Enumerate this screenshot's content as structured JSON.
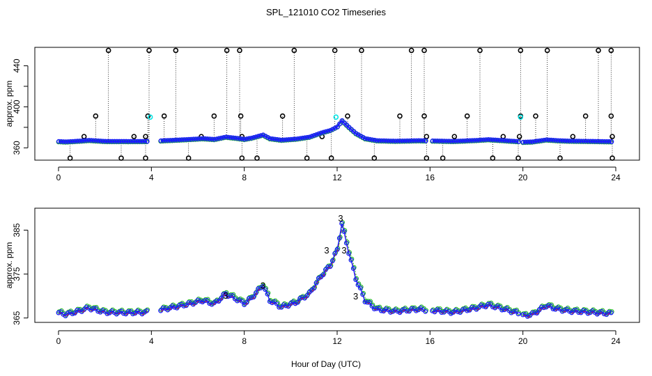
{
  "title": "SPL_121010  CO2 Timeseries",
  "xlabel": "Hour of Day (UTC)",
  "colors": {
    "axis": "#000000",
    "black": "#000000",
    "cyan": "#00e5e5",
    "blue": "#1a1aff",
    "green": "#22bb22",
    "red": "#dd2222"
  },
  "chart_data": [
    {
      "type": "scatter",
      "name": "full-range",
      "ylabel": "approx. ppm",
      "xlim": [
        0,
        24
      ],
      "ylim": [
        348,
        458
      ],
      "xticks": [
        0,
        4,
        8,
        12,
        16,
        20,
        24
      ],
      "yticks": [
        360,
        400,
        440
      ],
      "yticks_unlabeled": [
        380,
        420
      ],
      "outliers_high": [
        2.15,
        3.9,
        5.05,
        7.25,
        7.8,
        10.15,
        11.9,
        13.05,
        15.2,
        15.75,
        18.15,
        19.9,
        21.05,
        23.25,
        23.8
      ],
      "outliers_low": [
        0.5,
        2.7,
        3.75,
        5.6,
        7.9,
        8.55,
        10.7,
        11.75,
        13.6,
        15.85,
        16.55,
        18.7,
        19.8,
        21.6,
        23.85
      ],
      "outliers_mid": [
        1.6,
        3.85,
        4.55,
        6.7,
        7.85,
        9.65,
        12.45,
        14.7,
        15.75,
        17.6,
        19.9,
        20.55,
        22.7,
        23.8
      ],
      "outliers_minor": [
        1.1,
        3.25,
        3.75,
        6.15,
        7.9,
        11.35,
        15.85,
        17.05,
        19.15,
        19.85,
        22.15,
        23.85
      ],
      "cyan_points": [
        [
          3.95,
          390
        ],
        [
          11.95,
          390
        ],
        [
          19.9,
          390
        ]
      ],
      "series_note": "three nearly identical series (black/cyan/green/red circles, blue line) centred near 366 ppm with a peak of ~386 ppm at 12 h"
    },
    {
      "type": "line",
      "name": "zoom",
      "ylabel": "approx. ppm",
      "xlim": [
        0,
        24
      ],
      "ylim": [
        364,
        390
      ],
      "xticks": [
        0,
        4,
        8,
        12,
        16,
        20,
        24
      ],
      "yticks": [
        365,
        375,
        385
      ],
      "gaps_hours": [
        [
          3.85,
          4.35
        ],
        [
          15.85,
          16.0
        ],
        [
          19.85,
          20.0
        ]
      ],
      "labeled_points": [
        [
          11.55,
          380.5,
          "3"
        ],
        [
          12.15,
          387.8,
          "3"
        ],
        [
          12.3,
          380.5,
          "3"
        ],
        [
          12.8,
          370,
          "3"
        ],
        [
          7.2,
          370.2,
          "3"
        ],
        [
          8.8,
          372.5,
          "3"
        ]
      ],
      "profile_keypoints": {
        "x": [
          0,
          0.3,
          0.9,
          1.3,
          2,
          3,
          3.85,
          4.35,
          5,
          5.7,
          6.2,
          6.7,
          7.2,
          7.6,
          8.0,
          8.3,
          8.8,
          9.1,
          9.6,
          10.2,
          10.8,
          11.3,
          11.7,
          12.0,
          12.2,
          12.5,
          12.8,
          13.2,
          13.7,
          14.5,
          15.5,
          15.85,
          16.0,
          17,
          18,
          18.5,
          19.2,
          19.85,
          20.0,
          20.4,
          21,
          21.5,
          22,
          23,
          23.8
        ],
        "y": [
          366.2,
          365.8,
          366.6,
          367.3,
          366.3,
          366.2,
          366.3,
          366.8,
          367.5,
          368.3,
          369.0,
          368.2,
          370.5,
          369.5,
          368.3,
          369.5,
          372.5,
          369.0,
          367.5,
          368.5,
          370.5,
          374.5,
          377.0,
          380.5,
          386.5,
          380.0,
          374.0,
          369.0,
          367.0,
          366.5,
          367.0,
          366.8,
          366.8,
          366.3,
          367.3,
          368.0,
          367.0,
          366.0,
          365.5,
          365.8,
          367.8,
          367.0,
          366.6,
          366.3,
          366.0
        ]
      }
    }
  ]
}
